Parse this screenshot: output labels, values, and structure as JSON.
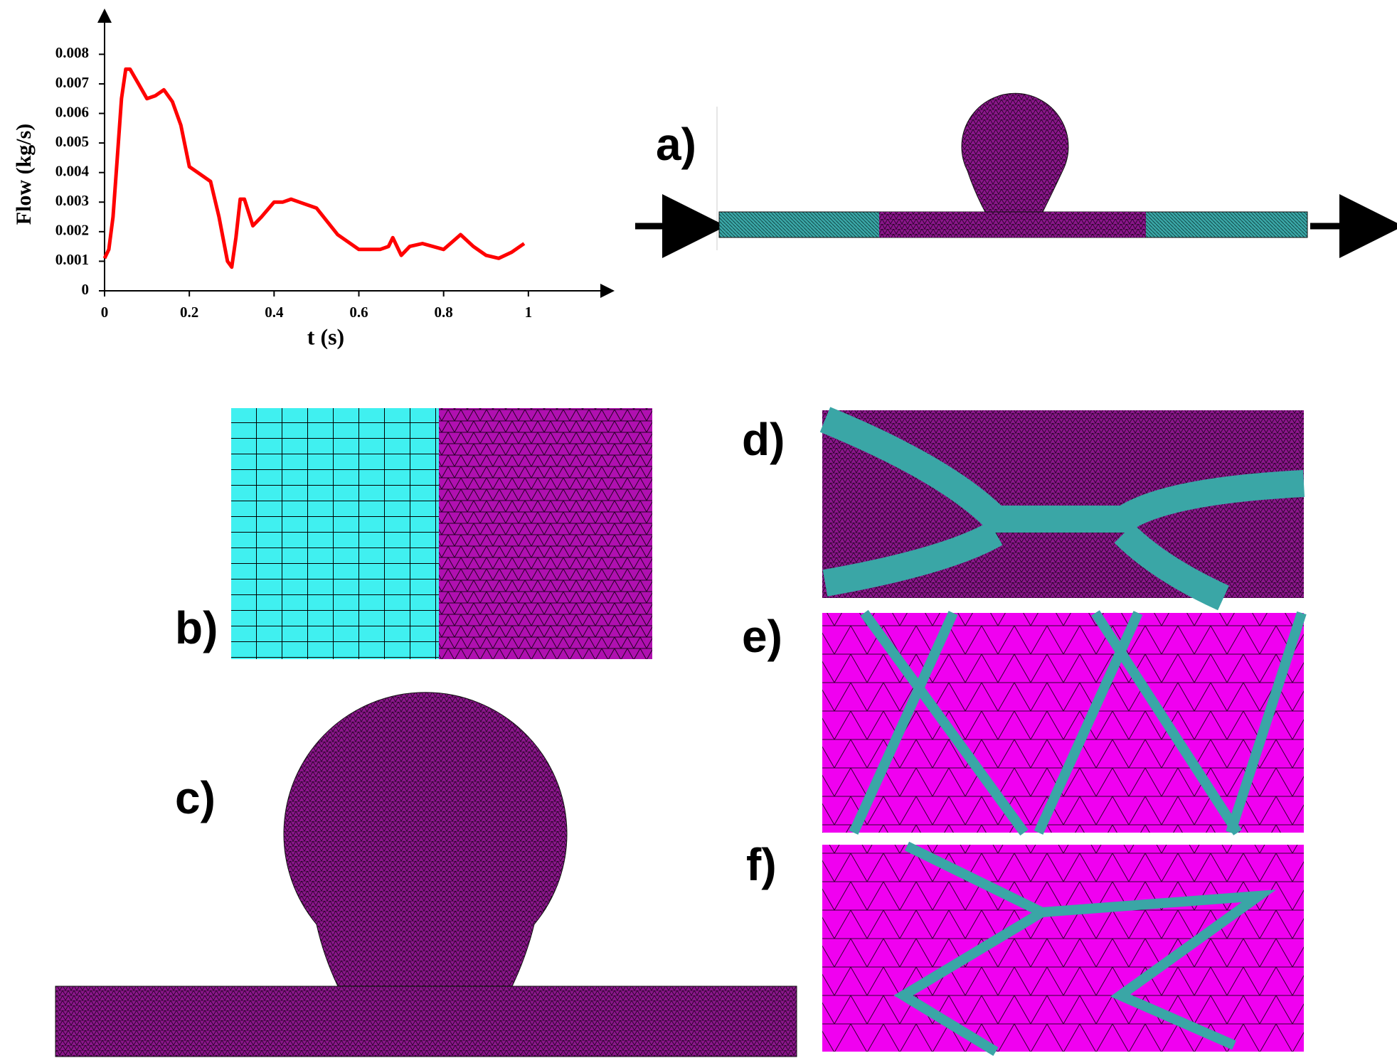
{
  "chart_data": {
    "type": "line",
    "x_label": "t (s)",
    "y_label": "Flow (kg/s)",
    "x": [
      0,
      0.01,
      0.02,
      0.03,
      0.04,
      0.05,
      0.06,
      0.08,
      0.1,
      0.12,
      0.14,
      0.16,
      0.18,
      0.2,
      0.22,
      0.25,
      0.27,
      0.29,
      0.3,
      0.31,
      0.32,
      0.33,
      0.35,
      0.37,
      0.4,
      0.42,
      0.44,
      0.46,
      0.5,
      0.55,
      0.6,
      0.65,
      0.67,
      0.68,
      0.7,
      0.72,
      0.75,
      0.8,
      0.84,
      0.87,
      0.9,
      0.93,
      0.96,
      0.99
    ],
    "values": [
      0.0011,
      0.0014,
      0.0025,
      0.0045,
      0.0065,
      0.0075,
      0.0075,
      0.007,
      0.0065,
      0.0066,
      0.0068,
      0.0064,
      0.0056,
      0.0042,
      0.004,
      0.0037,
      0.0025,
      0.001,
      0.0008,
      0.0018,
      0.0031,
      0.0031,
      0.0022,
      0.0025,
      0.003,
      0.003,
      0.0031,
      0.003,
      0.0028,
      0.0019,
      0.0014,
      0.0014,
      0.0015,
      0.0018,
      0.0012,
      0.0015,
      0.0016,
      0.0014,
      0.0019,
      0.0015,
      0.0012,
      0.0011,
      0.0013,
      0.0016
    ],
    "color": "#ff0000",
    "xlim": [
      0,
      1.2
    ],
    "ylim": [
      0,
      0.0095
    ],
    "xticks": [
      0,
      0.2,
      0.4,
      0.6,
      0.8,
      1
    ],
    "yticks": [
      0,
      0.001,
      0.002,
      0.003,
      0.004,
      0.005,
      0.006,
      0.007,
      0.008
    ],
    "grid": false
  },
  "panel_labels": [
    "a)",
    "b)",
    "c)",
    "d)",
    "e)",
    "f)"
  ]
}
